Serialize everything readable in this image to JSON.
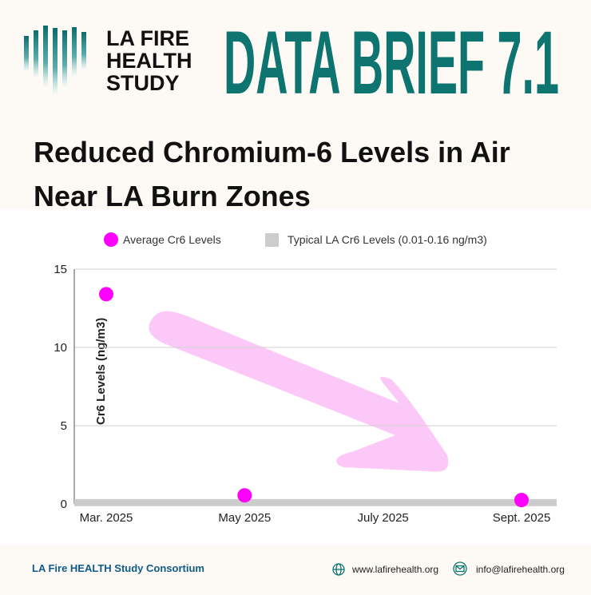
{
  "header": {
    "logo_lines": [
      "LA FIRE",
      "HEALTH",
      "STUDY"
    ],
    "brief": "DATA BRIEF 7.1"
  },
  "chart_data": {
    "type": "scatter",
    "title_lines": [
      "Reduced Chromium-6 Levels in Air",
      "Near LA Burn Zones"
    ],
    "y_label": "Cr6 Levels (ng/m3)",
    "categories": [
      "Mar. 2025",
      "May 2025",
      "July 2025",
      "Sept. 2025"
    ],
    "series": [
      {
        "name": "Average Cr6 Levels",
        "color": "#ff00ff",
        "values": [
          13.4,
          0.55,
          null,
          0.25
        ]
      }
    ],
    "range": {
      "name": "Typical LA Cr6 Levels (0.01-0.16 ng/m3)",
      "color": "#cccccc",
      "low": 0.01,
      "high": 0.16
    },
    "ylim": [
      0,
      15
    ],
    "yticks": [
      0,
      5,
      10,
      15
    ],
    "grid": true
  },
  "footer": {
    "org": "LA Fire HEALTH Study Consortium",
    "web": "www.lafirehealth.org",
    "email": "info@lafirehealth.org"
  }
}
